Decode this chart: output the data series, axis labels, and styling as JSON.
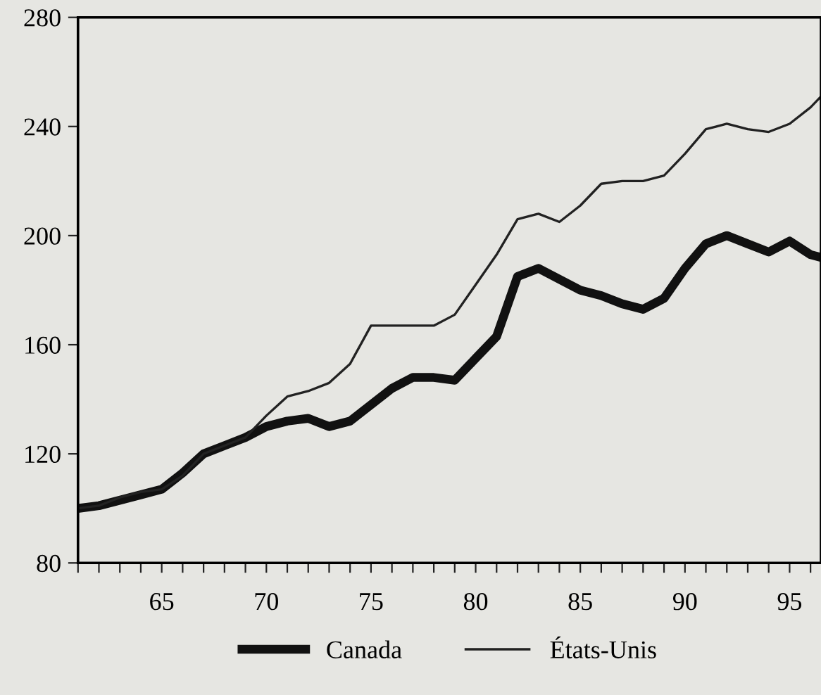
{
  "chart_data": {
    "type": "line",
    "x": [
      61,
      62,
      63,
      64,
      65,
      66,
      67,
      68,
      69,
      70,
      71,
      72,
      73,
      74,
      75,
      76,
      77,
      78,
      79,
      80,
      81,
      82,
      83,
      84,
      85,
      86,
      87,
      88,
      89,
      90,
      91,
      92,
      93,
      94,
      95,
      96,
      96.5
    ],
    "series": [
      {
        "name": "Canada",
        "color": "#111111",
        "values": [
          100,
          101,
          103,
          105,
          107,
          113,
          120,
          123,
          126,
          130,
          132,
          133,
          130,
          132,
          138,
          144,
          148,
          148,
          147,
          155,
          163,
          185,
          188,
          184,
          180,
          178,
          175,
          173,
          177,
          188,
          197,
          200,
          197,
          194,
          198,
          193,
          192
        ]
      },
      {
        "name": "États-Unis",
        "color": "#222222",
        "values": [
          100,
          101,
          104,
          106,
          107,
          112,
          120,
          123,
          126,
          134,
          141,
          143,
          146,
          153,
          167,
          167,
          167,
          167,
          171,
          182,
          193,
          206,
          208,
          205,
          211,
          219,
          220,
          220,
          222,
          230,
          239,
          241,
          239,
          238,
          241,
          247,
          251
        ]
      }
    ],
    "xlim": [
      61,
      96.5
    ],
    "ylim": [
      80,
      280
    ],
    "xticks": [
      {
        "value": 61,
        "label": null
      },
      {
        "value": 62,
        "label": null
      },
      {
        "value": 63,
        "label": null
      },
      {
        "value": 64,
        "label": null
      },
      65,
      {
        "value": 66,
        "label": null
      },
      {
        "value": 67,
        "label": null
      },
      {
        "value": 68,
        "label": null
      },
      {
        "value": 69,
        "label": null
      },
      70,
      {
        "value": 71,
        "label": null
      },
      {
        "value": 72,
        "label": null
      },
      {
        "value": 73,
        "label": null
      },
      {
        "value": 74,
        "label": null
      },
      75,
      {
        "value": 76,
        "label": null
      },
      {
        "value": 77,
        "label": null
      },
      {
        "value": 78,
        "label": null
      },
      {
        "value": 79,
        "label": null
      },
      80,
      {
        "value": 81,
        "label": null
      },
      {
        "value": 82,
        "label": null
      },
      {
        "value": 83,
        "label": null
      },
      {
        "value": 84,
        "label": null
      },
      85,
      {
        "value": 86,
        "label": null
      },
      {
        "value": 87,
        "label": null
      },
      {
        "value": 88,
        "label": null
      },
      {
        "value": 89,
        "label": null
      },
      90,
      {
        "value": 91,
        "label": null
      },
      {
        "value": 92,
        "label": null
      },
      {
        "value": 93,
        "label": null
      },
      {
        "value": 94,
        "label": null
      },
      95,
      {
        "value": 96,
        "label": null
      }
    ],
    "yticks": [
      80,
      120,
      160,
      200,
      240,
      280
    ],
    "grid": false,
    "legend": "bottom",
    "marker": "none",
    "line_style": "solid"
  }
}
